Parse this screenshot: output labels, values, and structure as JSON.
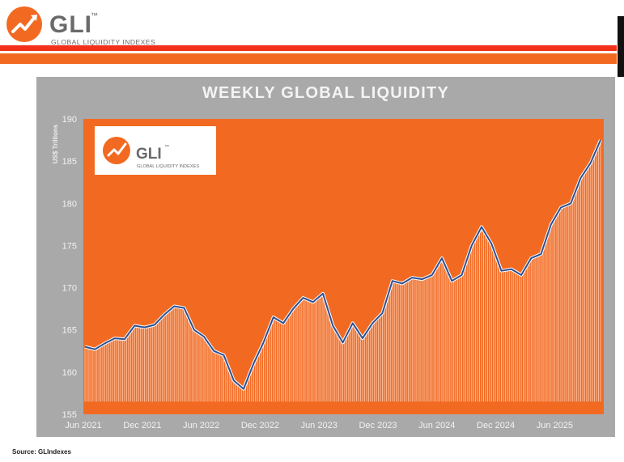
{
  "header": {
    "brand": "GLI",
    "trademark": "™",
    "subtitle": "GLOBAL LIQUIDITY INDEXES"
  },
  "colors": {
    "orange": "#f26a21",
    "red": "#f3301a",
    "panel_gray": "#a9a9a9",
    "line_blue": "#2f4f8f"
  },
  "source": "Source: GLIndexes",
  "chart_data": {
    "type": "area",
    "title": "WEEKLY GLOBAL LIQUIDITY",
    "ylabel": "US$ Trillions",
    "xlabel": "",
    "ylim": [
      155,
      190
    ],
    "yticks": [
      "155",
      "160",
      "165",
      "170",
      "175",
      "180",
      "185",
      "190"
    ],
    "xticks": [
      "Jun 2021",
      "Dec 2021",
      "Jun 2022",
      "Dec 2022",
      "Jun 2023",
      "Dec 2023",
      "Jun 2024",
      "Dec 2024",
      "Jun 2025"
    ],
    "grid": false,
    "series": [
      {
        "x": [
          "2021-06",
          "2021-07",
          "2021-08",
          "2021-09",
          "2021-10",
          "2021-11",
          "2021-12",
          "2022-01",
          "2022-02",
          "2022-03",
          "2022-04",
          "2022-05",
          "2022-06",
          "2022-07",
          "2022-08",
          "2022-09",
          "2022-10",
          "2022-11",
          "2022-12",
          "2023-01",
          "2023-02",
          "2023-03",
          "2023-04",
          "2023-05",
          "2023-06",
          "2023-07",
          "2023-08",
          "2023-09",
          "2023-10",
          "2023-11",
          "2023-12",
          "2024-01",
          "2024-02",
          "2024-03",
          "2024-04",
          "2024-05",
          "2024-06",
          "2024-07",
          "2024-08",
          "2024-09",
          "2024-10",
          "2024-11",
          "2024-12",
          "2025-01",
          "2025-02",
          "2025-03",
          "2025-04",
          "2025-05",
          "2025-06",
          "2025-07",
          "2025-08",
          "2025-09",
          "2025-10"
        ],
        "values": [
          163.0,
          162.7,
          163.4,
          164.0,
          163.9,
          165.5,
          165.3,
          165.6,
          166.8,
          167.8,
          167.6,
          165.0,
          164.2,
          162.5,
          162.0,
          159.0,
          158.0,
          161.0,
          163.5,
          166.5,
          165.8,
          167.5,
          168.8,
          168.3,
          169.3,
          165.5,
          163.5,
          165.8,
          164.0,
          165.8,
          167.0,
          170.8,
          170.5,
          171.2,
          171.0,
          171.5,
          173.5,
          170.8,
          171.5,
          175.0,
          177.2,
          175.2,
          172.0,
          172.2,
          171.5,
          173.5,
          174.0,
          177.5,
          179.5,
          180.0,
          183.0,
          184.8,
          187.5
        ]
      }
    ],
    "inset_logo": {
      "brand": "GLI",
      "trademark": "™",
      "subtitle": "GLOBAL LIQUIDITY INDEXES"
    }
  }
}
